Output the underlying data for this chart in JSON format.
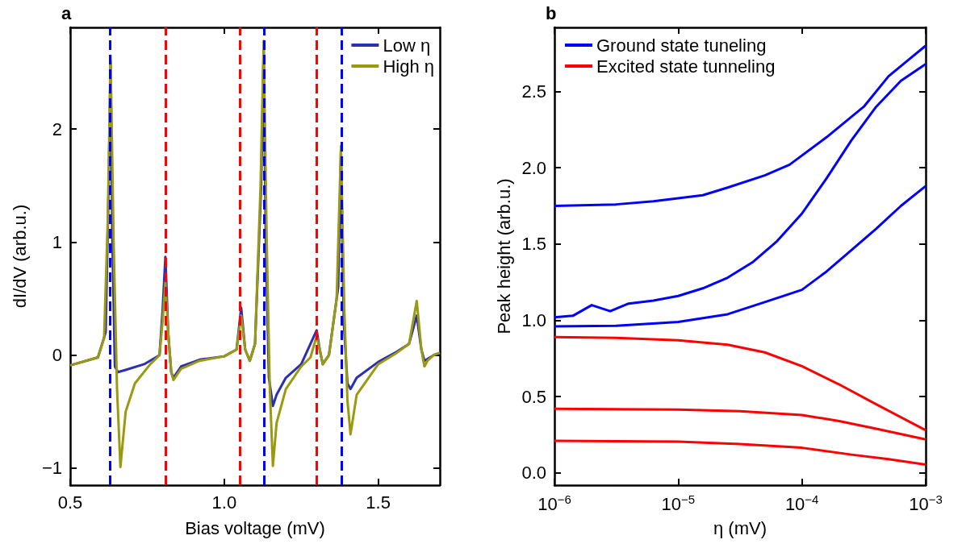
{
  "chart_data": [
    {
      "type": "line",
      "title": "a",
      "xlabel": "Bias voltage (mV)",
      "ylabel": "dI/dV (arb.u.)",
      "xlim": [
        0.5,
        1.7
      ],
      "xticks": [
        0.5,
        {
          "value": 1,
          "label": "1.0"
        },
        1.5
      ],
      "ylim": [
        -1.15,
        2.9
      ],
      "yticks": [
        {
          "value": -1,
          "label": "−1"
        },
        0,
        1,
        2
      ],
      "legend": "top right",
      "marker": "none",
      "line_style": "solid",
      "series": [
        {
          "name": "Low η",
          "color": "#2b2fb0",
          "x": [
            0.5,
            0.59,
            0.615,
            0.625,
            0.631,
            0.637,
            0.645,
            0.655,
            0.68,
            0.74,
            0.79,
            0.8,
            0.809,
            0.818,
            0.828,
            0.835,
            0.86,
            0.92,
            1.0,
            1.04,
            1.055,
            1.068,
            1.083,
            1.1,
            1.12,
            1.128,
            1.135,
            1.145,
            1.158,
            1.17,
            1.2,
            1.25,
            1.3,
            1.31,
            1.32,
            1.34,
            1.37,
            1.379,
            1.388,
            1.4,
            1.41,
            1.43,
            1.5,
            1.56,
            1.6,
            1.625,
            1.64,
            1.65,
            1.68,
            1.7
          ],
          "values": [
            -0.09,
            -0.02,
            0.2,
            1.5,
            2.6,
            1.0,
            -0.1,
            -0.15,
            -0.13,
            -0.08,
            0.0,
            0.4,
            0.87,
            0.2,
            -0.15,
            -0.2,
            -0.1,
            -0.04,
            -0.01,
            0.05,
            0.42,
            0.05,
            -0.05,
            0.1,
            1.5,
            2.7,
            1.0,
            -0.2,
            -0.45,
            -0.35,
            -0.2,
            -0.08,
            0.22,
            0.05,
            -0.08,
            0.0,
            0.6,
            1.8,
            0.3,
            -0.25,
            -0.3,
            -0.2,
            -0.06,
            0.03,
            0.1,
            0.35,
            0.05,
            -0.05,
            0.0,
            0.02
          ]
        },
        {
          "name": "High η",
          "color": "#9a9a10",
          "x": [
            0.5,
            0.59,
            0.61,
            0.622,
            0.631,
            0.641,
            0.652,
            0.663,
            0.68,
            0.71,
            0.76,
            0.79,
            0.8,
            0.809,
            0.818,
            0.828,
            0.835,
            0.86,
            0.92,
            1.0,
            1.04,
            1.055,
            1.068,
            1.083,
            1.1,
            1.118,
            1.128,
            1.138,
            1.148,
            1.158,
            1.17,
            1.2,
            1.25,
            1.28,
            1.3,
            1.31,
            1.32,
            1.34,
            1.365,
            1.379,
            1.39,
            1.4,
            1.41,
            1.43,
            1.5,
            1.56,
            1.6,
            1.625,
            1.64,
            1.65,
            1.66,
            1.68,
            1.7
          ],
          "values": [
            -0.09,
            -0.02,
            0.15,
            1.2,
            2.65,
            1.0,
            -0.3,
            -0.99,
            -0.5,
            -0.25,
            -0.08,
            0.0,
            0.3,
            0.65,
            0.2,
            -0.15,
            -0.22,
            -0.12,
            -0.05,
            -0.01,
            0.05,
            0.35,
            0.05,
            -0.05,
            0.1,
            1.5,
            2.78,
            1.0,
            -0.3,
            -0.98,
            -0.6,
            -0.3,
            -0.1,
            -0.02,
            0.17,
            0.05,
            -0.08,
            0.0,
            0.5,
            1.85,
            0.4,
            -0.4,
            -0.7,
            -0.35,
            -0.08,
            0.02,
            0.1,
            0.48,
            0.05,
            -0.1,
            -0.05,
            0.0,
            0.02
          ]
        }
      ],
      "ref_lines": [
        {
          "axis": "x",
          "value": 0.63,
          "color": "#0000ff",
          "line_style": "dashed"
        },
        {
          "axis": "x",
          "value": 0.809,
          "color": "#ff0000",
          "line_style": "dashed"
        },
        {
          "axis": "x",
          "value": 1.055,
          "color": "#ff0000",
          "line_style": "dashed"
        },
        {
          "axis": "x",
          "value": 1.127,
          "color": "#0000ff",
          "line_style": "dashed"
        },
        {
          "axis": "x",
          "value": 1.304,
          "color": "#ff0000",
          "line_style": "dashed"
        },
        {
          "axis": "x",
          "value": 1.379,
          "color": "#0000ff",
          "line_style": "dashed"
        }
      ]
    },
    {
      "type": "line",
      "title": "b",
      "xlabel": "η (mV)",
      "ylabel": "Peak height (arb.u.)",
      "log": "x",
      "xlim": [
        1e-06,
        0.001
      ],
      "xticks": [
        {
          "value": 1e-06,
          "label": "10$^{−6}$"
        },
        {
          "value": 1e-05,
          "label": "10$^{−5}$"
        },
        {
          "value": 0.0001,
          "label": "10$^{−4}$"
        },
        {
          "value": 0.001,
          "label": "10$^{−3}$"
        }
      ],
      "ylim": [
        -0.08,
        2.92
      ],
      "yticks": [
        {
          "value": 0,
          "label": "0.0"
        },
        0.5,
        {
          "value": 1,
          "label": "1.0"
        },
        1.5,
        {
          "value": 2,
          "label": "2.0"
        },
        2.5
      ],
      "legend": "top left",
      "marker": "none",
      "line_style": "solid",
      "series": [
        {
          "name": "Ground state tuneling",
          "color": "#0000ff",
          "x": [
            1e-06,
            3.16e-06,
            6.31e-06,
            1.58e-05,
            2.51e-05,
            5.01e-05,
            7.94e-05,
            0.000158,
            0.000316,
            0.000501,
            0.000708,
            0.001
          ],
          "values": [
            1.75,
            1.76,
            1.78,
            1.82,
            1.87,
            1.95,
            2.02,
            2.2,
            2.4,
            2.6,
            2.7,
            2.8
          ]
        },
        {
          "color": "#0000ff",
          "x": [
            1e-06,
            1.41e-06,
            2e-06,
            2.82e-06,
            3.98e-06,
            6.31e-06,
            1e-05,
            1.58e-05,
            2.51e-05,
            3.98e-05,
            6.31e-05,
            0.0001,
            0.000158,
            0.000251,
            0.000398,
            0.000631,
            0.001
          ],
          "values": [
            1.02,
            1.03,
            1.1,
            1.06,
            1.11,
            1.13,
            1.16,
            1.21,
            1.28,
            1.38,
            1.52,
            1.7,
            1.93,
            2.18,
            2.4,
            2.57,
            2.68
          ]
        },
        {
          "color": "#0000ff",
          "x": [
            1e-06,
            3.16e-06,
            1e-05,
            2.51e-05,
            5.01e-05,
            0.0001,
            0.000158,
            0.000251,
            0.000398,
            0.000631,
            0.001
          ],
          "values": [
            0.96,
            0.965,
            0.99,
            1.04,
            1.12,
            1.2,
            1.32,
            1.46,
            1.6,
            1.75,
            1.88
          ]
        },
        {
          "name": "Excited state tunneling",
          "color": "#ff0000",
          "x": [
            1e-06,
            3.16e-06,
            1e-05,
            2.51e-05,
            5.01e-05,
            0.0001,
            0.0002,
            0.000398,
            0.001
          ],
          "values": [
            0.89,
            0.885,
            0.87,
            0.84,
            0.79,
            0.7,
            0.58,
            0.45,
            0.28
          ]
        },
        {
          "color": "#ff0000",
          "x": [
            1e-06,
            1e-05,
            3.16e-05,
            0.0001,
            0.0002,
            0.000398,
            0.001
          ],
          "values": [
            0.42,
            0.415,
            0.405,
            0.38,
            0.34,
            0.29,
            0.22
          ]
        },
        {
          "color": "#ff0000",
          "x": [
            1e-06,
            1e-05,
            3.16e-05,
            0.0001,
            0.000251,
            0.000501,
            0.001
          ],
          "values": [
            0.21,
            0.205,
            0.19,
            0.165,
            0.12,
            0.09,
            0.055
          ]
        }
      ]
    }
  ]
}
